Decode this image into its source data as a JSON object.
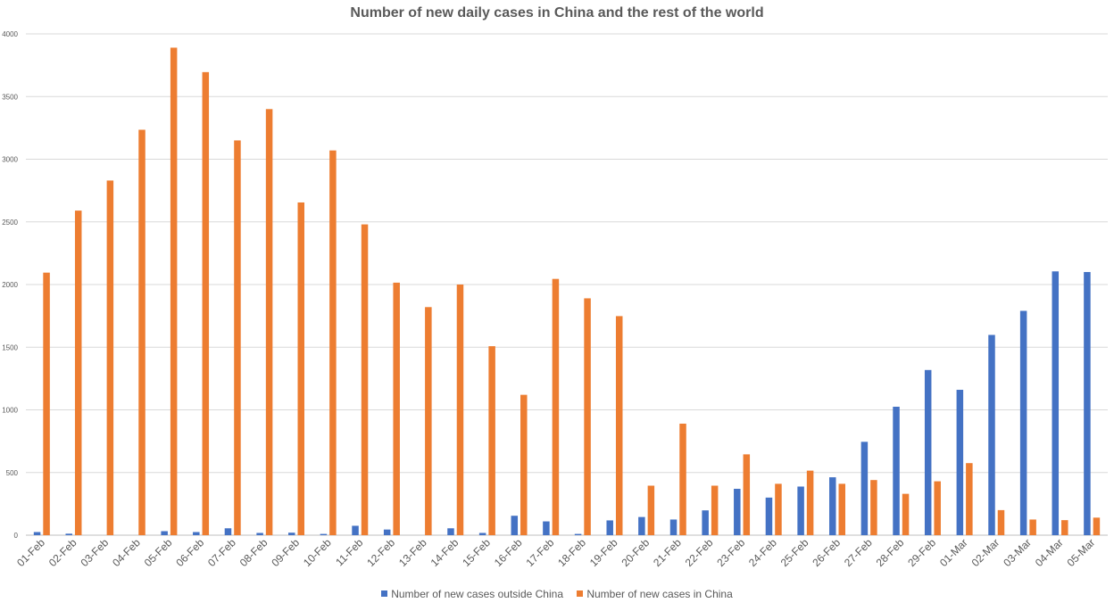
{
  "chart_data": {
    "type": "bar",
    "title": "Number of new daily cases in China and the rest of the world",
    "xlabel": "",
    "ylabel": "",
    "ylim": [
      0,
      4000
    ],
    "yticks": [
      0,
      500,
      1000,
      1500,
      2000,
      2500,
      3000,
      3500,
      4000
    ],
    "grid": true,
    "legend_position": "bottom",
    "categories": [
      "01-Feb",
      "02-Feb",
      "03-Feb",
      "04-Feb",
      "05-Feb",
      "06-Feb",
      "07-Feb",
      "08-Feb",
      "09-Feb",
      "10-Feb",
      "11-Feb",
      "12-Feb",
      "13-Feb",
      "14-Feb",
      "15-Feb",
      "16-Feb",
      "17-Feb",
      "18-Feb",
      "19-Feb",
      "20-Feb",
      "21-Feb",
      "22-Feb",
      "23-Feb",
      "24-Feb",
      "25-Feb",
      "26-Feb",
      "27-Feb",
      "28-Feb",
      "29-Feb",
      "01-Mar",
      "02-Mar",
      "03-Mar",
      "04-Mar",
      "05-Mar"
    ],
    "series": [
      {
        "name": "Number of new cases outside China",
        "color": "#4472C4",
        "values": [
          25,
          12,
          0,
          0,
          32,
          25,
          55,
          18,
          20,
          10,
          75,
          45,
          0,
          55,
          18,
          155,
          110,
          10,
          118,
          145,
          125,
          198,
          370,
          300,
          388,
          462,
          745,
          1025,
          1318,
          1160,
          1598,
          1790,
          2105,
          2100
        ]
      },
      {
        "name": "Number of new cases in China",
        "color": "#ED7D31",
        "values": [
          2095,
          2590,
          2830,
          3235,
          3890,
          3695,
          3150,
          3400,
          2655,
          3070,
          2480,
          2015,
          1820,
          2000,
          1508,
          1120,
          2045,
          1890,
          1748,
          395,
          890,
          395,
          645,
          410,
          515,
          410,
          440,
          330,
          430,
          575,
          200,
          125,
          120,
          140
        ]
      }
    ]
  },
  "legend": {
    "outside_label": "Number of new cases outside China",
    "china_label": "Number of new cases in China"
  }
}
